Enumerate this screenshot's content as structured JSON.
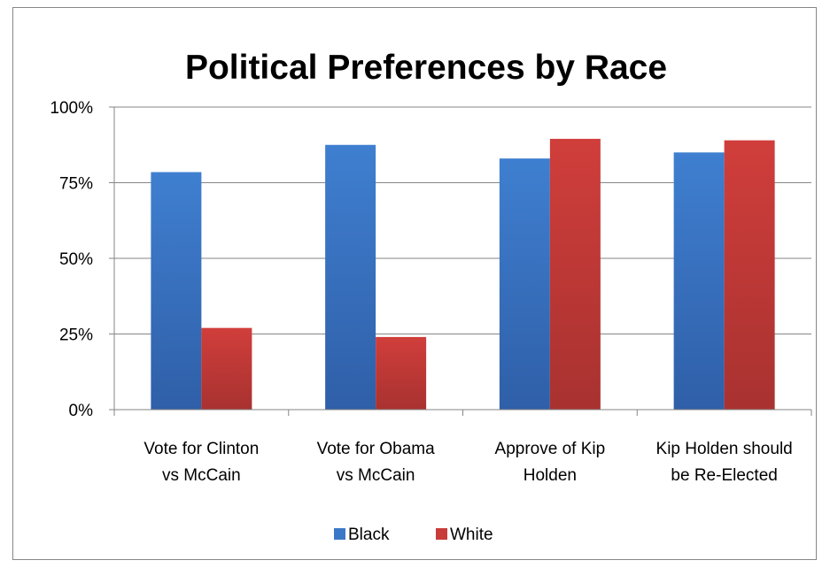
{
  "chart_data": {
    "type": "bar",
    "title": "Political Preferences by Race",
    "xlabel": "",
    "ylabel": "",
    "ylim": [
      0,
      100
    ],
    "y_ticks": [
      "0%",
      "25%",
      "50%",
      "75%",
      "100%"
    ],
    "y_tick_values": [
      0,
      25,
      50,
      75,
      100
    ],
    "categories": [
      [
        "Vote for Clinton",
        "vs McCain"
      ],
      [
        "Vote for Obama",
        "vs McCain"
      ],
      [
        "Approve of Kip",
        "Holden"
      ],
      [
        "Kip Holden should",
        "be Re-Elected"
      ]
    ],
    "series": [
      {
        "name": "Black",
        "color": "#3C78C8",
        "values": [
          78.5,
          87.5,
          83,
          85
        ]
      },
      {
        "name": "White",
        "color": "#C83C3A",
        "values": [
          27,
          24,
          89.5,
          89
        ]
      }
    ],
    "grid": true,
    "legend_position": "bottom"
  }
}
